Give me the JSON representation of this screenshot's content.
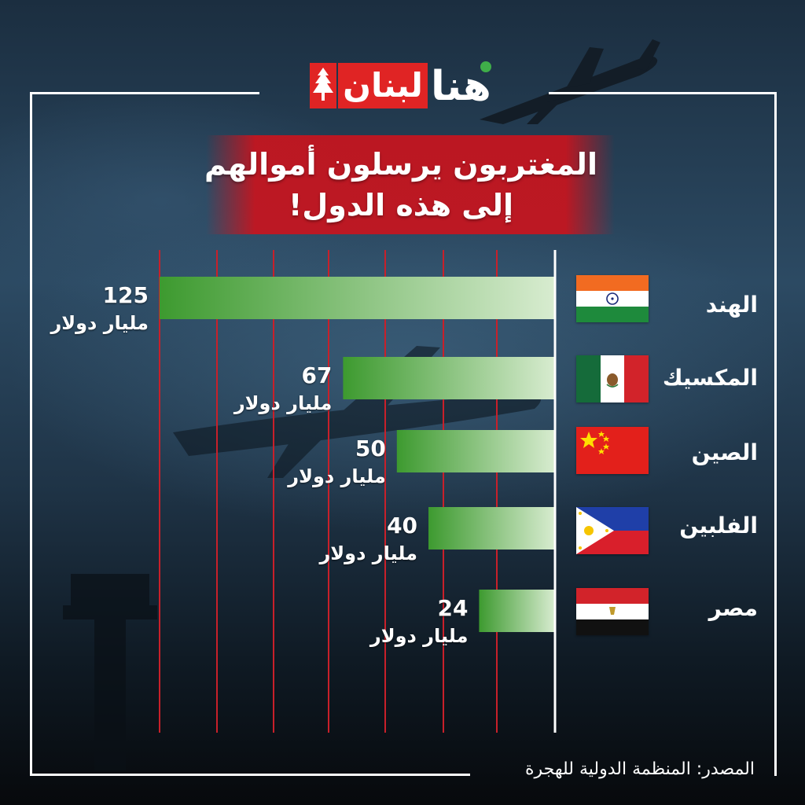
{
  "brand": {
    "logo_name": "هنا لبنان",
    "logo_part_hona": "هنا",
    "logo_part_lebnan": "لبنان",
    "accent_red": "#e02424",
    "accent_green": "#3fae49"
  },
  "title": {
    "line1": "المغتربون يرسلون أموالهم",
    "line2": "إلى هذه الدول!"
  },
  "chart_data": {
    "type": "bar",
    "orientation": "horizontal",
    "categories": [
      "الهند",
      "المكسيك",
      "الصين",
      "الفلبين",
      "مصر"
    ],
    "values": [
      125,
      67,
      50,
      40,
      24
    ],
    "value_labels": [
      "125",
      "67",
      "50",
      "40",
      "24"
    ],
    "unit": "مليار دولار",
    "flags": [
      "flag-india-icon",
      "flag-mexico-icon",
      "flag-china-icon",
      "flag-philippines-icon",
      "flag-egypt-icon"
    ],
    "xlim": [
      0,
      125
    ],
    "grid": true,
    "bar_color_start": "#3d9a2f",
    "bar_color_end": "#d8ecd0",
    "grid_color": "#c8202a"
  },
  "source": {
    "label": "المصدر: المنظمة الدولية للهجرة"
  }
}
